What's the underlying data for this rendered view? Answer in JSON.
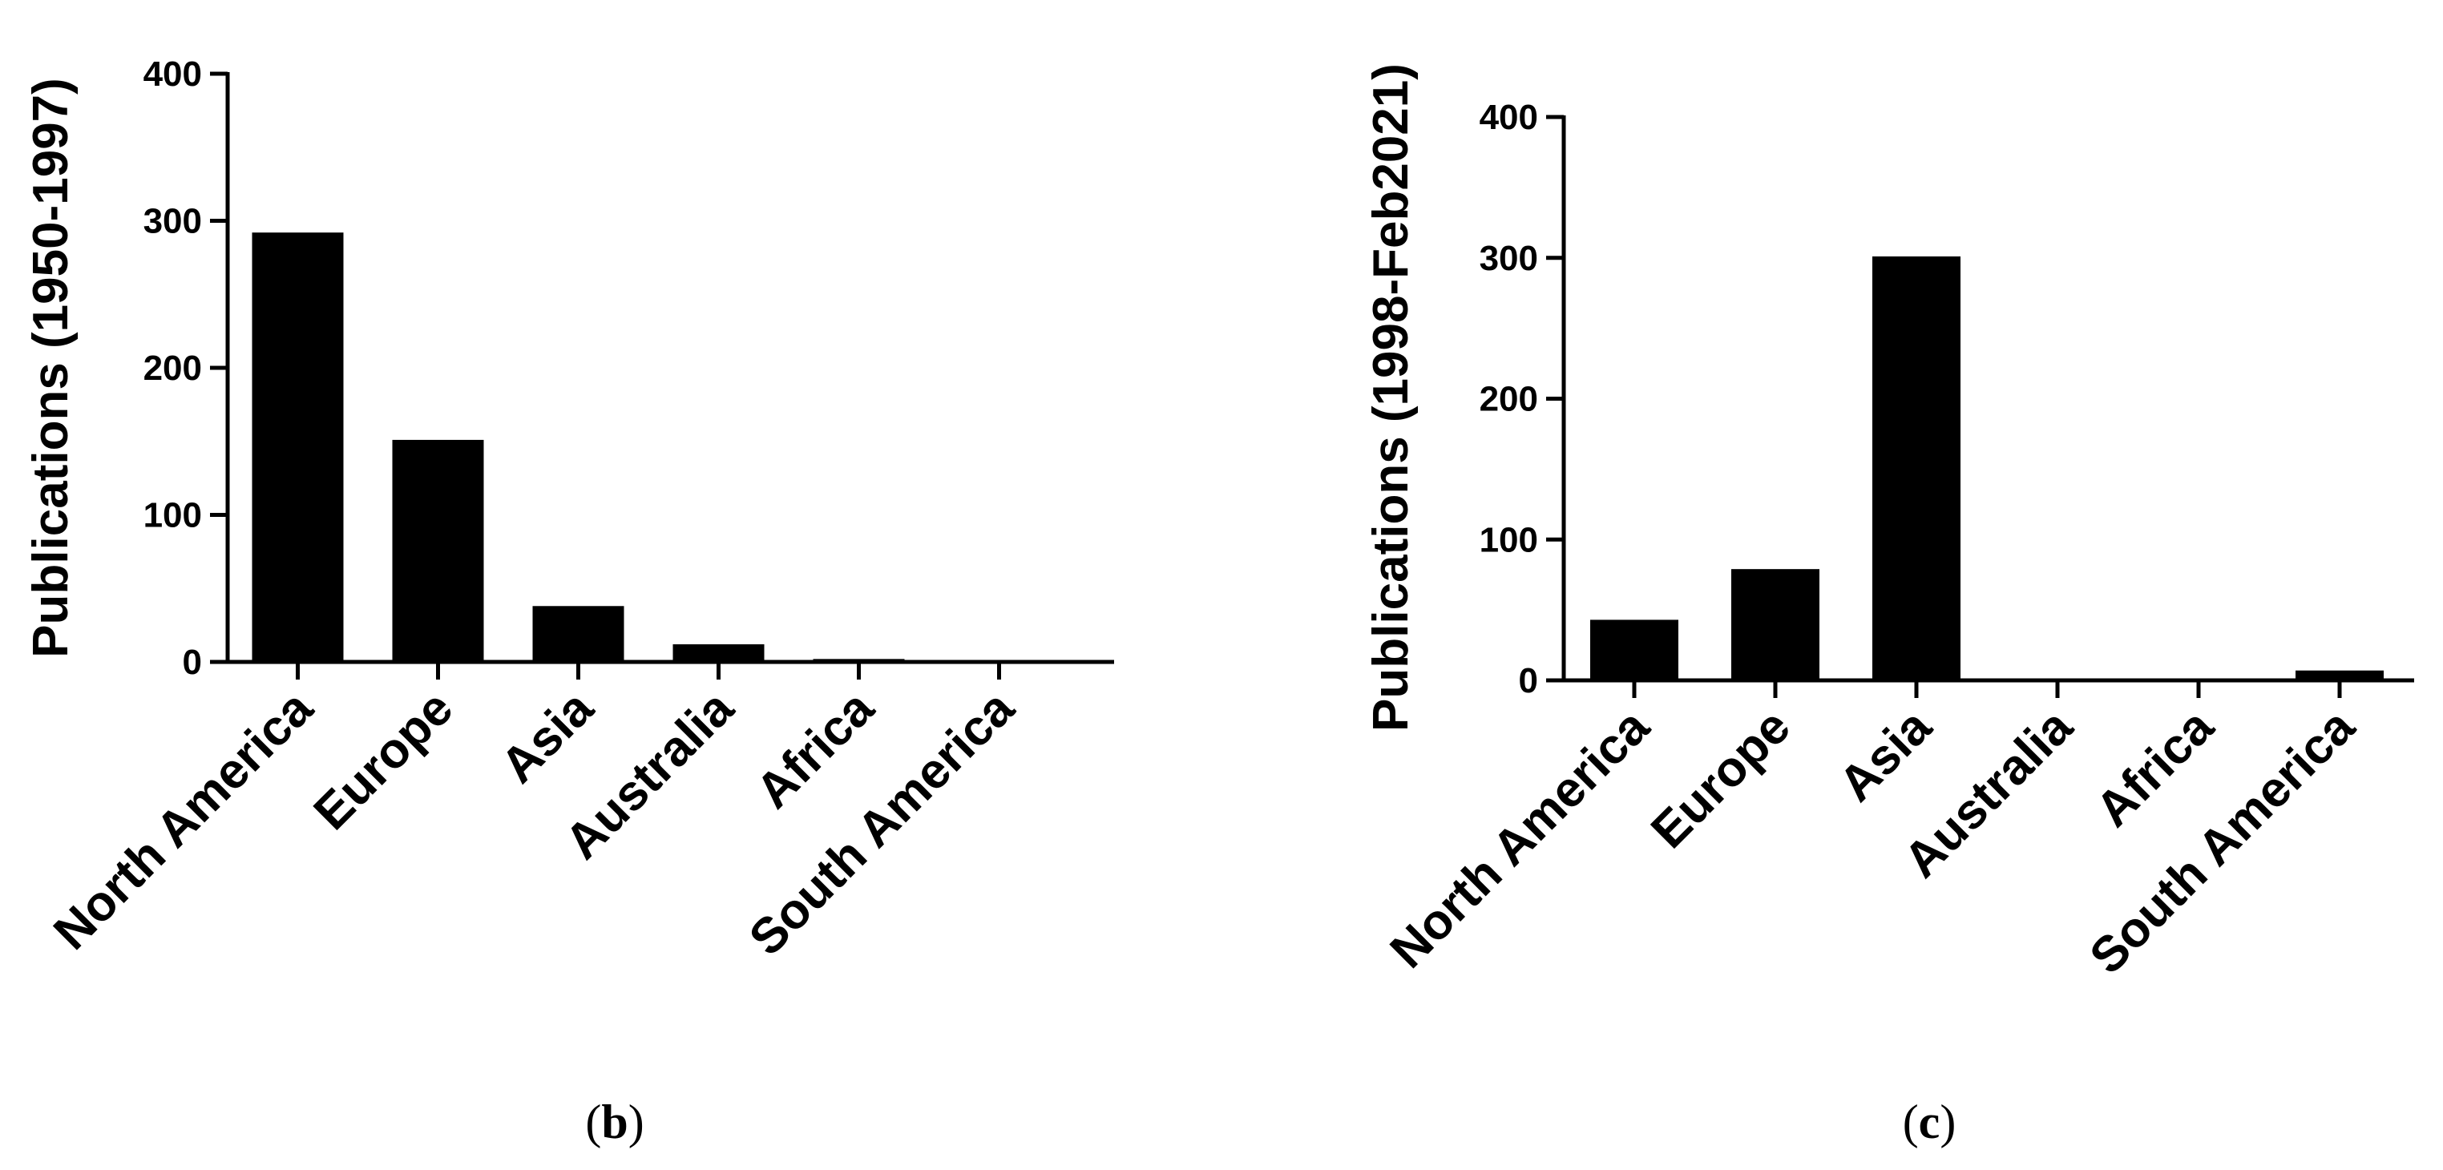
{
  "chart_data": [
    {
      "type": "bar",
      "panel_label": "b",
      "categories": [
        "North America",
        "Europe",
        "Asia",
        "Australia",
        "Africa",
        "South America"
      ],
      "values": [
        292,
        151,
        38,
        12,
        2,
        0
      ],
      "ylabel": "Publications (1950-1997)",
      "xlabel": "",
      "ylim": [
        0,
        400
      ],
      "yticks": [
        0,
        100,
        200,
        300,
        400
      ],
      "bar_color": "#000000",
      "grid": false,
      "legend": "none"
    },
    {
      "type": "bar",
      "panel_label": "c",
      "categories": [
        "North America",
        "Europe",
        "Asia",
        "Australia",
        "Africa",
        "South America"
      ],
      "values": [
        43,
        79,
        301,
        0,
        0,
        7
      ],
      "ylabel": "Publications (1998-Feb2021)",
      "xlabel": "",
      "ylim": [
        0,
        400
      ],
      "yticks": [
        0,
        100,
        200,
        300,
        400
      ],
      "bar_color": "#000000",
      "grid": false,
      "legend": "none"
    }
  ]
}
